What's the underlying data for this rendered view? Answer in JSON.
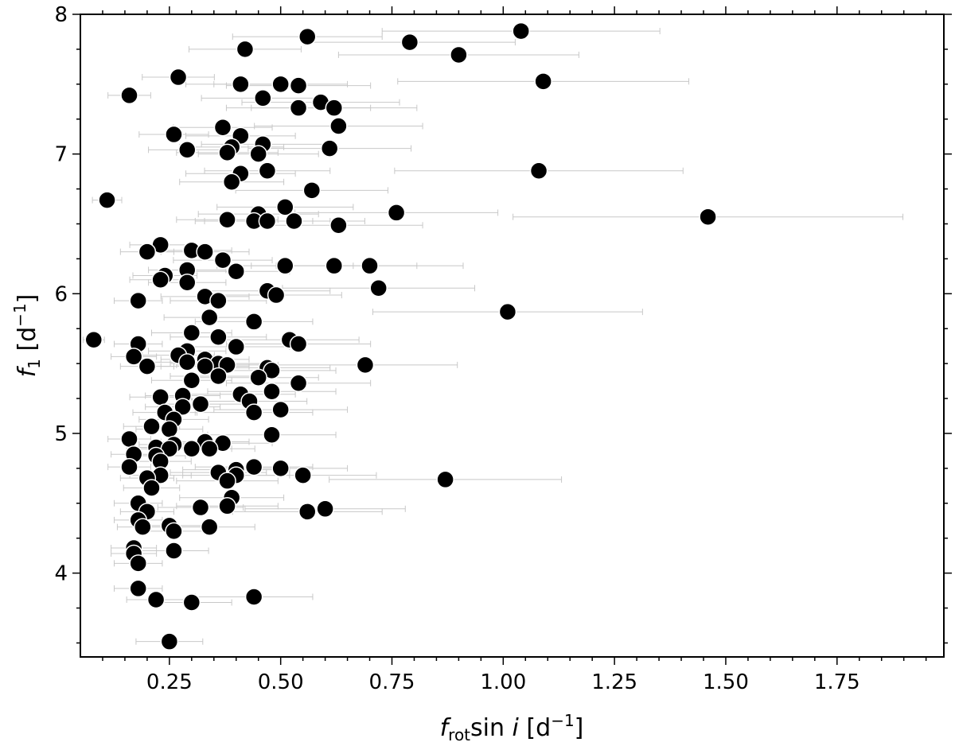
{
  "chart_data": {
    "type": "scatter",
    "title": "",
    "xlabel": {
      "main": "f",
      "sub": "rot",
      "mid": "sin ",
      "italic": "i",
      "unit": " [d",
      "sup": "−1",
      "close": "]"
    },
    "ylabel": {
      "main": "f",
      "sub": "1",
      "unit": " [d",
      "sup": "−1",
      "close": "]"
    },
    "xlim": [
      0.05,
      1.99
    ],
    "ylim": [
      3.4,
      8.0
    ],
    "xticks": [
      0.25,
      0.5,
      0.75,
      1.0,
      1.25,
      1.5,
      1.75
    ],
    "xtick_labels": [
      "0.25",
      "0.50",
      "0.75",
      "1.00",
      "1.25",
      "1.50",
      "1.75"
    ],
    "yticks": [
      4,
      5,
      6,
      7,
      8
    ],
    "ytick_labels": [
      "4",
      "5",
      "6",
      "7",
      "8"
    ],
    "grid": false,
    "marker_color": "#000000",
    "errorbar_color": "#c8c8c8",
    "x_error_relative": 0.3,
    "points": [
      {
        "x": 1.04,
        "y": 7.88
      },
      {
        "x": 0.56,
        "y": 7.84
      },
      {
        "x": 0.79,
        "y": 7.8
      },
      {
        "x": 0.42,
        "y": 7.75
      },
      {
        "x": 0.9,
        "y": 7.71
      },
      {
        "x": 0.27,
        "y": 7.55
      },
      {
        "x": 1.09,
        "y": 7.52
      },
      {
        "x": 0.41,
        "y": 7.5
      },
      {
        "x": 0.5,
        "y": 7.5
      },
      {
        "x": 0.54,
        "y": 7.49
      },
      {
        "x": 0.16,
        "y": 7.42
      },
      {
        "x": 0.46,
        "y": 7.4
      },
      {
        "x": 0.59,
        "y": 7.37
      },
      {
        "x": 0.54,
        "y": 7.33
      },
      {
        "x": 0.62,
        "y": 7.33
      },
      {
        "x": 0.63,
        "y": 7.2
      },
      {
        "x": 0.37,
        "y": 7.19
      },
      {
        "x": 0.26,
        "y": 7.14
      },
      {
        "x": 0.41,
        "y": 7.13
      },
      {
        "x": 0.46,
        "y": 7.07
      },
      {
        "x": 0.39,
        "y": 7.05
      },
      {
        "x": 0.29,
        "y": 7.03
      },
      {
        "x": 0.61,
        "y": 7.04
      },
      {
        "x": 0.38,
        "y": 7.01
      },
      {
        "x": 0.45,
        "y": 7.0
      },
      {
        "x": 1.08,
        "y": 6.88
      },
      {
        "x": 0.47,
        "y": 6.88
      },
      {
        "x": 0.41,
        "y": 6.86
      },
      {
        "x": 0.39,
        "y": 6.8
      },
      {
        "x": 0.57,
        "y": 6.74
      },
      {
        "x": 0.11,
        "y": 6.67
      },
      {
        "x": 0.51,
        "y": 6.62
      },
      {
        "x": 0.76,
        "y": 6.58
      },
      {
        "x": 0.45,
        "y": 6.57
      },
      {
        "x": 1.46,
        "y": 6.55
      },
      {
        "x": 0.38,
        "y": 6.53
      },
      {
        "x": 0.44,
        "y": 6.52
      },
      {
        "x": 0.47,
        "y": 6.52
      },
      {
        "x": 0.53,
        "y": 6.52
      },
      {
        "x": 0.63,
        "y": 6.49
      },
      {
        "x": 0.23,
        "y": 6.35
      },
      {
        "x": 0.2,
        "y": 6.3
      },
      {
        "x": 0.3,
        "y": 6.31
      },
      {
        "x": 0.33,
        "y": 6.3
      },
      {
        "x": 0.37,
        "y": 6.24
      },
      {
        "x": 0.51,
        "y": 6.2
      },
      {
        "x": 0.62,
        "y": 6.2
      },
      {
        "x": 0.7,
        "y": 6.2
      },
      {
        "x": 0.29,
        "y": 6.17
      },
      {
        "x": 0.4,
        "y": 6.16
      },
      {
        "x": 0.24,
        "y": 6.13
      },
      {
        "x": 0.23,
        "y": 6.1
      },
      {
        "x": 0.29,
        "y": 6.08
      },
      {
        "x": 0.72,
        "y": 6.04
      },
      {
        "x": 0.47,
        "y": 6.02
      },
      {
        "x": 0.49,
        "y": 5.99
      },
      {
        "x": 0.33,
        "y": 5.98
      },
      {
        "x": 0.18,
        "y": 5.95
      },
      {
        "x": 0.36,
        "y": 5.95
      },
      {
        "x": 1.01,
        "y": 5.87
      },
      {
        "x": 0.34,
        "y": 5.83
      },
      {
        "x": 0.44,
        "y": 5.8
      },
      {
        "x": 0.3,
        "y": 5.72
      },
      {
        "x": 0.36,
        "y": 5.69
      },
      {
        "x": 0.08,
        "y": 5.67
      },
      {
        "x": 0.52,
        "y": 5.67
      },
      {
        "x": 0.18,
        "y": 5.64
      },
      {
        "x": 0.54,
        "y": 5.64
      },
      {
        "x": 0.4,
        "y": 5.62
      },
      {
        "x": 0.29,
        "y": 5.59
      },
      {
        "x": 0.27,
        "y": 5.56
      },
      {
        "x": 0.17,
        "y": 5.55
      },
      {
        "x": 0.33,
        "y": 5.53
      },
      {
        "x": 0.29,
        "y": 5.51
      },
      {
        "x": 0.36,
        "y": 5.5
      },
      {
        "x": 0.38,
        "y": 5.49
      },
      {
        "x": 0.69,
        "y": 5.49
      },
      {
        "x": 0.2,
        "y": 5.48
      },
      {
        "x": 0.33,
        "y": 5.48
      },
      {
        "x": 0.47,
        "y": 5.47
      },
      {
        "x": 0.48,
        "y": 5.45
      },
      {
        "x": 0.36,
        "y": 5.41
      },
      {
        "x": 0.45,
        "y": 5.4
      },
      {
        "x": 0.3,
        "y": 5.38
      },
      {
        "x": 0.54,
        "y": 5.36
      },
      {
        "x": 0.48,
        "y": 5.3
      },
      {
        "x": 0.41,
        "y": 5.28
      },
      {
        "x": 0.28,
        "y": 5.27
      },
      {
        "x": 0.23,
        "y": 5.26
      },
      {
        "x": 0.43,
        "y": 5.23
      },
      {
        "x": 0.32,
        "y": 5.21
      },
      {
        "x": 0.28,
        "y": 5.19
      },
      {
        "x": 0.5,
        "y": 5.17
      },
      {
        "x": 0.44,
        "y": 5.15
      },
      {
        "x": 0.24,
        "y": 5.15
      },
      {
        "x": 0.26,
        "y": 5.1
      },
      {
        "x": 0.21,
        "y": 5.05
      },
      {
        "x": 0.25,
        "y": 5.03
      },
      {
        "x": 0.48,
        "y": 4.99
      },
      {
        "x": 0.16,
        "y": 4.96
      },
      {
        "x": 0.33,
        "y": 4.94
      },
      {
        "x": 0.37,
        "y": 4.93
      },
      {
        "x": 0.26,
        "y": 4.92
      },
      {
        "x": 0.22,
        "y": 4.9
      },
      {
        "x": 0.25,
        "y": 4.89
      },
      {
        "x": 0.34,
        "y": 4.89
      },
      {
        "x": 0.3,
        "y": 4.89
      },
      {
        "x": 0.17,
        "y": 4.85
      },
      {
        "x": 0.22,
        "y": 4.84
      },
      {
        "x": 0.23,
        "y": 4.8
      },
      {
        "x": 0.16,
        "y": 4.76
      },
      {
        "x": 0.44,
        "y": 4.76
      },
      {
        "x": 0.5,
        "y": 4.75
      },
      {
        "x": 0.4,
        "y": 4.74
      },
      {
        "x": 0.36,
        "y": 4.72
      },
      {
        "x": 0.23,
        "y": 4.7
      },
      {
        "x": 0.4,
        "y": 4.7
      },
      {
        "x": 0.55,
        "y": 4.7
      },
      {
        "x": 0.2,
        "y": 4.68
      },
      {
        "x": 0.87,
        "y": 4.67
      },
      {
        "x": 0.38,
        "y": 4.66
      },
      {
        "x": 0.21,
        "y": 4.61
      },
      {
        "x": 0.39,
        "y": 4.54
      },
      {
        "x": 0.18,
        "y": 4.5
      },
      {
        "x": 0.38,
        "y": 4.48
      },
      {
        "x": 0.32,
        "y": 4.47
      },
      {
        "x": 0.6,
        "y": 4.46
      },
      {
        "x": 0.2,
        "y": 4.44
      },
      {
        "x": 0.56,
        "y": 4.44
      },
      {
        "x": 0.18,
        "y": 4.38
      },
      {
        "x": 0.19,
        "y": 4.33
      },
      {
        "x": 0.25,
        "y": 4.34
      },
      {
        "x": 0.34,
        "y": 4.33
      },
      {
        "x": 0.26,
        "y": 4.3
      },
      {
        "x": 0.17,
        "y": 4.18
      },
      {
        "x": 0.17,
        "y": 4.14
      },
      {
        "x": 0.26,
        "y": 4.16
      },
      {
        "x": 0.18,
        "y": 4.07
      },
      {
        "x": 0.18,
        "y": 3.89
      },
      {
        "x": 0.44,
        "y": 3.83
      },
      {
        "x": 0.22,
        "y": 3.81
      },
      {
        "x": 0.3,
        "y": 3.79
      },
      {
        "x": 0.25,
        "y": 3.51
      }
    ]
  }
}
